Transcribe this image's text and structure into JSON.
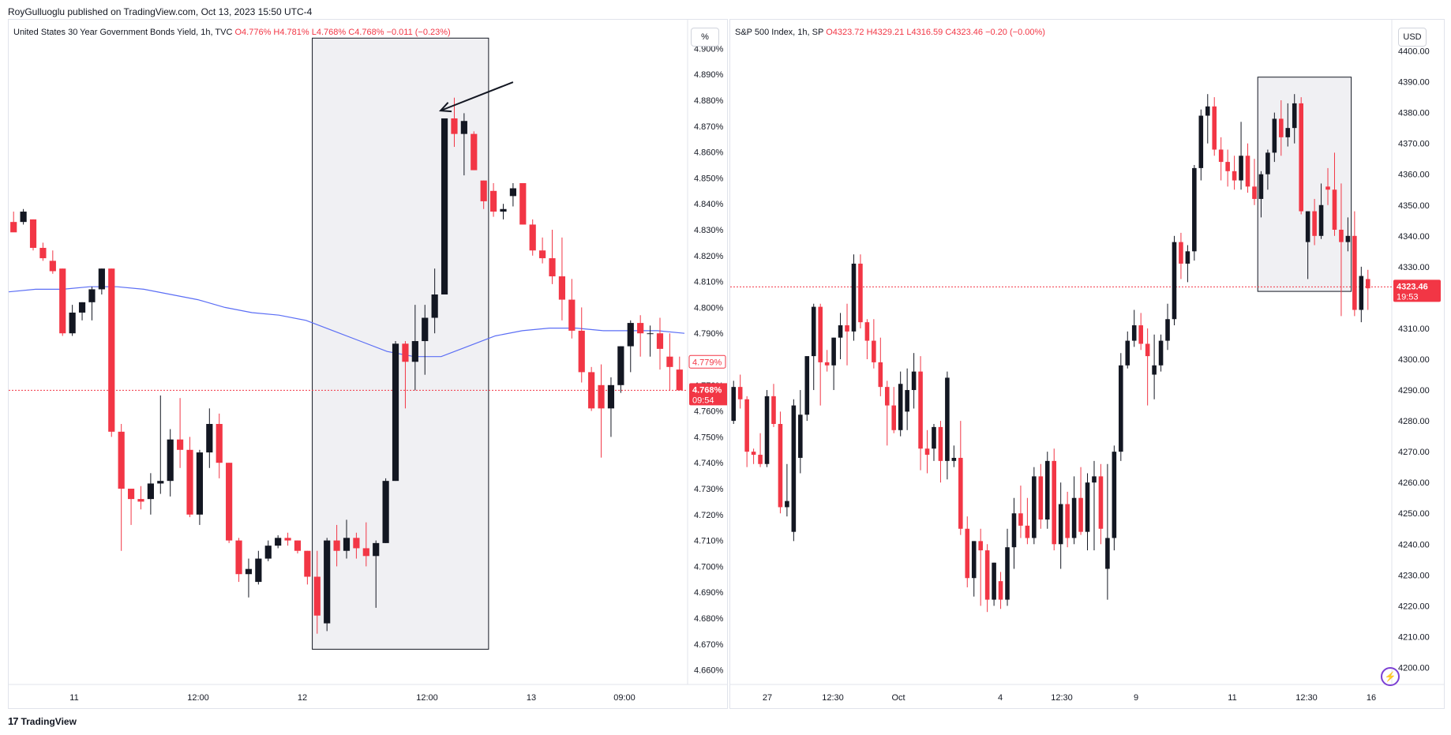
{
  "header": {
    "publisher_line": "RoyGulluoglu published on TradingView.com, Oct 13, 2023 15:50 UTC-4"
  },
  "footer": {
    "brand": "TradingView",
    "logo_icon": "tradingview-logo-icon"
  },
  "colors": {
    "up": "#131722",
    "down": "#f23645",
    "ma": "#5b6ef5",
    "box_fill": "#f0f0f3",
    "grid_text": "#131722"
  },
  "left": {
    "legend": {
      "name": "United States 30 Year Government Bonds Yield, 1h, TVC",
      "o": "O4.776%",
      "h": "H4.781%",
      "l": "L4.768%",
      "c": "C4.768%",
      "chg": "−0.011 (−0.23%)"
    },
    "unit_button": "%",
    "price_tag": {
      "value": "4.768%",
      "countdown": "09:54"
    },
    "ma_tag": "4.779%"
  },
  "right": {
    "legend": {
      "name": "S&P 500 Index, 1h, SP",
      "o": "O4323.72",
      "h": "H4329.21",
      "l": "L4316.59",
      "c": "C4323.46",
      "chg": "−0.20 (−0.00%)"
    },
    "unit_button": "USD",
    "price_tag": {
      "value": "4323.46",
      "countdown": "19:53"
    },
    "replay_icon": "lightning-icon"
  },
  "chart_data": [
    {
      "type": "candlestick",
      "title": "United States 30 Year Government Bonds Yield, 1h, TVC",
      "ylim": [
        4.655,
        4.905
      ],
      "yticks": [
        "4.900%",
        "4.890%",
        "4.880%",
        "4.870%",
        "4.860%",
        "4.850%",
        "4.840%",
        "4.830%",
        "4.820%",
        "4.810%",
        "4.800%",
        "4.790%",
        "4.780%",
        "4.770%",
        "4.760%",
        "4.750%",
        "4.740%",
        "4.730%",
        "4.720%",
        "4.710%",
        "4.700%",
        "4.690%",
        "4.680%",
        "4.670%",
        "4.660%"
      ],
      "xticks": [
        "11",
        "12:00",
        "12",
        "12:00",
        "13",
        "09:00"
      ],
      "candles": [
        [
          4.833,
          4.837,
          4.83,
          4.829
        ],
        [
          4.833,
          4.838,
          4.832,
          4.837
        ],
        [
          4.834,
          4.834,
          4.822,
          4.823
        ],
        [
          4.823,
          4.825,
          4.818,
          4.819
        ],
        [
          4.818,
          4.822,
          4.813,
          4.814
        ],
        [
          4.815,
          4.815,
          4.789,
          4.79
        ],
        [
          4.79,
          4.801,
          4.789,
          4.798
        ],
        [
          4.798,
          4.802,
          4.795,
          4.802
        ],
        [
          4.802,
          4.808,
          4.795,
          4.807
        ],
        [
          4.807,
          4.815,
          4.805,
          4.815
        ],
        [
          4.815,
          4.815,
          4.75,
          4.752
        ],
        [
          4.752,
          4.755,
          4.706,
          4.73
        ],
        [
          4.73,
          4.73,
          4.716,
          4.726
        ],
        [
          4.726,
          4.731,
          4.722,
          4.725
        ],
        [
          4.726,
          4.736,
          4.72,
          4.732
        ],
        [
          4.732,
          4.766,
          4.728,
          4.733
        ],
        [
          4.733,
          4.753,
          4.727,
          4.749
        ],
        [
          4.749,
          4.765,
          4.738,
          4.745
        ],
        [
          4.745,
          4.75,
          4.719,
          4.72
        ],
        [
          4.72,
          4.745,
          4.716,
          4.744
        ],
        [
          4.744,
          4.761,
          4.738,
          4.755
        ],
        [
          4.755,
          4.759,
          4.734,
          4.74
        ],
        [
          4.74,
          4.74,
          4.709,
          4.71
        ],
        [
          4.71,
          4.711,
          4.694,
          4.697
        ],
        [
          4.697,
          4.703,
          4.688,
          4.699
        ],
        [
          4.694,
          4.706,
          4.693,
          4.703
        ],
        [
          4.703,
          4.71,
          4.702,
          4.708
        ],
        [
          4.708,
          4.712,
          4.707,
          4.711
        ],
        [
          4.711,
          4.713,
          4.708,
          4.71
        ],
        [
          4.71,
          4.71,
          4.705,
          4.706
        ],
        [
          4.706,
          4.706,
          4.693,
          4.696
        ],
        [
          4.696,
          4.706,
          4.674,
          4.681
        ],
        [
          4.678,
          4.711,
          4.675,
          4.71
        ],
        [
          4.71,
          4.716,
          4.7,
          4.706
        ],
        [
          4.706,
          4.718,
          4.703,
          4.711
        ],
        [
          4.711,
          4.713,
          4.703,
          4.707
        ],
        [
          4.707,
          4.717,
          4.7,
          4.704
        ],
        [
          4.704,
          4.71,
          4.684,
          4.709
        ],
        [
          4.709,
          4.734,
          4.709,
          4.733
        ],
        [
          4.733,
          4.787,
          4.733,
          4.786
        ],
        [
          4.786,
          4.787,
          4.761,
          4.779
        ],
        [
          4.779,
          4.801,
          4.768,
          4.787
        ],
        [
          4.787,
          4.801,
          4.774,
          4.796
        ],
        [
          4.796,
          4.815,
          4.79,
          4.805
        ],
        [
          4.805,
          4.873,
          4.805,
          4.873
        ],
        [
          4.873,
          4.881,
          4.862,
          4.867
        ],
        [
          4.867,
          4.875,
          4.851,
          4.872
        ],
        [
          4.867,
          4.868,
          4.853,
          4.853
        ],
        [
          4.849,
          4.849,
          4.838,
          4.841
        ],
        [
          4.845,
          4.848,
          4.835,
          4.837
        ],
        [
          4.837,
          4.84,
          4.834,
          4.838
        ],
        [
          4.843,
          4.848,
          4.839,
          4.846
        ],
        [
          4.848,
          4.848,
          4.832,
          4.832
        ],
        [
          4.832,
          4.834,
          4.82,
          4.822
        ],
        [
          4.822,
          4.827,
          4.817,
          4.819
        ],
        [
          4.819,
          4.83,
          4.809,
          4.812
        ],
        [
          4.812,
          4.827,
          4.795,
          4.803
        ],
        [
          4.803,
          4.811,
          4.788,
          4.791
        ],
        [
          4.791,
          4.8,
          4.771,
          4.775
        ],
        [
          4.775,
          4.777,
          4.76,
          4.761
        ],
        [
          4.77,
          4.778,
          4.742,
          4.761
        ],
        [
          4.761,
          4.773,
          4.75,
          4.77
        ],
        [
          4.77,
          4.785,
          4.767,
          4.785
        ],
        [
          4.785,
          4.795,
          4.775,
          4.794
        ],
        [
          4.794,
          4.797,
          4.781,
          4.79
        ],
        [
          4.79,
          4.793,
          4.781,
          4.79
        ],
        [
          4.79,
          4.796,
          4.776,
          4.784
        ],
        [
          4.781,
          4.79,
          4.768,
          4.777
        ],
        [
          4.776,
          4.781,
          4.768,
          4.768
        ]
      ],
      "ma_series": [
        4.806,
        4.807,
        4.807,
        4.808,
        4.808,
        4.807,
        4.805,
        4.803,
        4.8,
        4.798,
        4.797,
        4.795,
        4.791,
        4.787,
        4.783,
        4.781,
        4.781,
        4.785,
        4.789,
        4.791,
        4.792,
        4.792,
        4.791,
        4.791,
        4.791,
        4.79
      ],
      "last_price": 4.768,
      "highlight_box": {
        "x_from_candle": 31,
        "x_to_candle": 48,
        "y_top": 4.904,
        "y_bottom": 4.668
      },
      "annotation_arrow": {
        "from": [
          51.0,
          4.887
        ],
        "to": [
          43.6,
          4.876
        ]
      }
    },
    {
      "type": "candlestick",
      "title": "S&P 500 Index, 1h, SP",
      "ylim": [
        4195,
        4405
      ],
      "yticks": [
        "4400.00",
        "4390.00",
        "4380.00",
        "4370.00",
        "4360.00",
        "4350.00",
        "4340.00",
        "4330.00",
        "4320.00",
        "4310.00",
        "4300.00",
        "4290.00",
        "4280.00",
        "4270.00",
        "4260.00",
        "4250.00",
        "4240.00",
        "4230.00",
        "4220.00",
        "4210.00",
        "4200.00"
      ],
      "xticks": [
        "27",
        "12:30",
        "Oct",
        "4",
        "12:30",
        "9",
        "11",
        "12:30",
        "16"
      ],
      "candles": [
        [
          4280,
          4293,
          4279,
          4291
        ],
        [
          4291,
          4295,
          4284,
          4287
        ],
        [
          4287,
          4288,
          4265,
          4270
        ],
        [
          4270,
          4271,
          4266,
          4269
        ],
        [
          4269,
          4276,
          4265,
          4266
        ],
        [
          4266,
          4290,
          4265,
          4288
        ],
        [
          4288,
          4292,
          4278,
          4279
        ],
        [
          4279,
          4283,
          4250,
          4252
        ],
        [
          4252,
          4266,
          4249,
          4254
        ],
        [
          4244,
          4287,
          4241,
          4285
        ],
        [
          4268,
          4290,
          4263,
          4282
        ],
        [
          4282,
          4300,
          4280,
          4301
        ],
        [
          4301,
          4318,
          4290,
          4317
        ],
        [
          4317,
          4318,
          4285,
          4299
        ],
        [
          4299,
          4303,
          4296,
          4298
        ],
        [
          4298,
          4307,
          4290,
          4307
        ],
        [
          4307,
          4315,
          4300,
          4311
        ],
        [
          4311,
          4318,
          4298,
          4309
        ],
        [
          4309,
          4334,
          4306,
          4331
        ],
        [
          4331,
          4334,
          4310,
          4312
        ],
        [
          4312,
          4313,
          4300,
          4306
        ],
        [
          4306,
          4313,
          4297,
          4299
        ],
        [
          4299,
          4307,
          4288,
          4291
        ],
        [
          4291,
          4293,
          4272,
          4285
        ],
        [
          4285,
          4291,
          4276,
          4277
        ],
        [
          4277,
          4296,
          4275,
          4292
        ],
        [
          4283,
          4297,
          4277,
          4290
        ],
        [
          4290,
          4302,
          4284,
          4296
        ],
        [
          4296,
          4301,
          4264,
          4271
        ],
        [
          4271,
          4277,
          4263,
          4269
        ],
        [
          4271,
          4279,
          4267,
          4278
        ],
        [
          4278,
          4280,
          4260,
          4267
        ],
        [
          4267,
          4296,
          4261,
          4294
        ],
        [
          4267,
          4272,
          4265,
          4268
        ],
        [
          4268,
          4280,
          4243,
          4245
        ],
        [
          4245,
          4249,
          4226,
          4229
        ],
        [
          4229,
          4241,
          4223,
          4241
        ],
        [
          4241,
          4245,
          4220,
          4238
        ],
        [
          4238,
          4240,
          4218,
          4222
        ],
        [
          4222,
          4234,
          4220,
          4234
        ],
        [
          4228,
          4231,
          4219,
          4222
        ],
        [
          4222,
          4245,
          4220,
          4239
        ],
        [
          4239,
          4255,
          4232,
          4250
        ],
        [
          4250,
          4259,
          4242,
          4246
        ],
        [
          4246,
          4255,
          4240,
          4242
        ],
        [
          4242,
          4265,
          4240,
          4262
        ],
        [
          4262,
          4266,
          4245,
          4248
        ],
        [
          4248,
          4270,
          4245,
          4267
        ],
        [
          4267,
          4271,
          4238,
          4240
        ],
        [
          4240,
          4260,
          4232,
          4253
        ],
        [
          4253,
          4257,
          4239,
          4242
        ],
        [
          4242,
          4262,
          4240,
          4255
        ],
        [
          4255,
          4265,
          4243,
          4244
        ],
        [
          4244,
          4263,
          4238,
          4260
        ],
        [
          4260,
          4267,
          4238,
          4262
        ],
        [
          4262,
          4266,
          4240,
          4245
        ],
        [
          4232,
          4266,
          4222,
          4242
        ],
        [
          4242,
          4272,
          4238,
          4270
        ],
        [
          4270,
          4302,
          4267,
          4298
        ],
        [
          4298,
          4309,
          4297,
          4306
        ],
        [
          4306,
          4316,
          4304,
          4311
        ],
        [
          4311,
          4315,
          4303,
          4305
        ],
        [
          4305,
          4310,
          4285,
          4301
        ],
        [
          4295,
          4308,
          4287,
          4298
        ],
        [
          4298,
          4308,
          4296,
          4306
        ],
        [
          4306,
          4318,
          4303,
          4313
        ],
        [
          4313,
          4340,
          4311,
          4338
        ],
        [
          4338,
          4341,
          4326,
          4331
        ],
        [
          4331,
          4337,
          4325,
          4335
        ],
        [
          4335,
          4363,
          4332,
          4362
        ],
        [
          4362,
          4381,
          4358,
          4379
        ],
        [
          4379,
          4386,
          4370,
          4382
        ],
        [
          4382,
          4385,
          4366,
          4368
        ],
        [
          4368,
          4372,
          4358,
          4364
        ],
        [
          4364,
          4368,
          4356,
          4361
        ],
        [
          4361,
          4366,
          4355,
          4358
        ],
        [
          4358,
          4377,
          4355,
          4366
        ],
        [
          4366,
          4370,
          4354,
          4356
        ],
        [
          4356,
          4365,
          4350,
          4352
        ],
        [
          4352,
          4361,
          4346,
          4360
        ],
        [
          4360,
          4368,
          4355,
          4367
        ],
        [
          4367,
          4380,
          4364,
          4378
        ],
        [
          4378,
          4384,
          4366,
          4372
        ],
        [
          4372,
          4383,
          4369,
          4375
        ],
        [
          4375,
          4386,
          4370,
          4383
        ],
        [
          4383,
          4385,
          4347,
          4348
        ],
        [
          4338,
          4347,
          4326,
          4348
        ],
        [
          4348,
          4352,
          4337,
          4340
        ],
        [
          4340,
          4357,
          4339,
          4350
        ],
        [
          4356,
          4362,
          4350,
          4355
        ],
        [
          4355,
          4367,
          4340,
          4342
        ],
        [
          4342,
          4357,
          4314,
          4338
        ],
        [
          4338,
          4346,
          4335,
          4340
        ],
        [
          4340,
          4348,
          4314,
          4316
        ],
        [
          4316,
          4330,
          4312,
          4327
        ],
        [
          4326,
          4329,
          4316,
          4323
        ]
      ],
      "last_price": 4323.46,
      "highlight_box": {
        "x_from_candle": 79,
        "x_to_candle": 92,
        "y_top": 4391.5,
        "y_bottom": 4322
      }
    }
  ]
}
